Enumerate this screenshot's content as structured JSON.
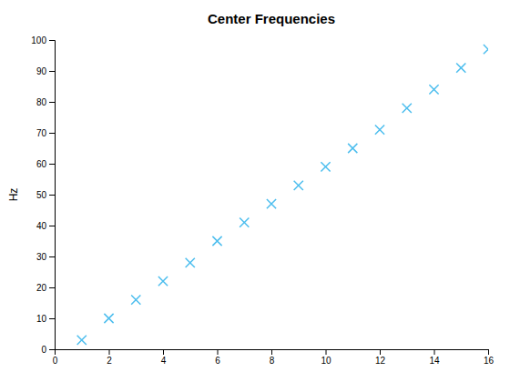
{
  "chart_data": {
    "type": "scatter",
    "title": "Center Frequencies",
    "ylabel": "Hz",
    "x": [
      1,
      2,
      3,
      4,
      5,
      6,
      7,
      8,
      9,
      10,
      11,
      12,
      13,
      14,
      15,
      16
    ],
    "values": [
      3,
      10,
      16,
      22,
      28,
      35,
      41,
      47,
      53,
      59,
      65,
      71,
      78,
      84,
      91,
      97
    ],
    "color": "#4DBEEE",
    "marker": "x",
    "xlim": [
      0,
      16
    ],
    "ylim": [
      0,
      100
    ],
    "xticks": [
      0,
      2,
      4,
      6,
      8,
      10,
      12,
      14,
      16
    ],
    "yticks": [
      0,
      10,
      20,
      30,
      40,
      50,
      60,
      70,
      80,
      90,
      100
    ],
    "grid": false
  }
}
